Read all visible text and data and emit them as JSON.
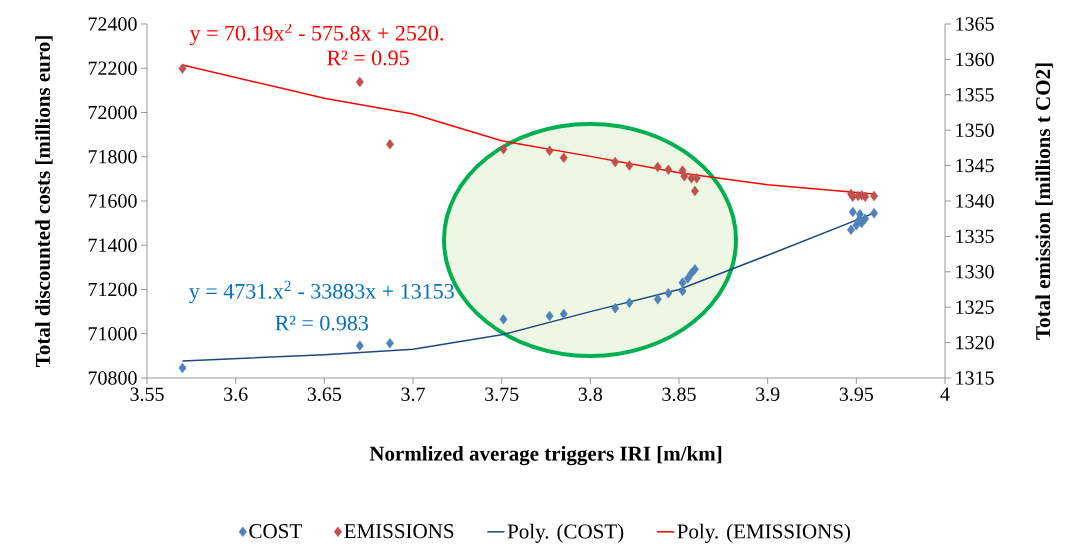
{
  "chart_data": {
    "type": "scatter",
    "xlabel": "Normlized average triggers IRI [m/km]",
    "ylabel": "Total discounted costs [millions euro]",
    "y2label": "Total emission [millions t CO2]",
    "xlim": [
      3.55,
      4
    ],
    "xticks": [
      3.55,
      3.6,
      3.65,
      3.7,
      3.75,
      3.8,
      3.85,
      3.9,
      3.95,
      4
    ],
    "ylim": [
      70800,
      72400
    ],
    "yticks": [
      70800,
      71000,
      71200,
      71400,
      71600,
      71800,
      72000,
      72200,
      72400
    ],
    "y2lim": [
      1315,
      1365
    ],
    "y2ticks": [
      1315,
      1320,
      1325,
      1330,
      1335,
      1340,
      1345,
      1350,
      1355,
      1360,
      1365
    ],
    "legend": "bottom",
    "annotations": [
      "y = 70.19x$^{2}$ - 575.8x + 2520.",
      "R² = 0.95",
      "y = 4731.x$^{2}$ - 33883x + 13153",
      "R² = 0.983"
    ],
    "series": [
      {
        "name": "COST",
        "marker": "diamond",
        "color": "#4f81bd",
        "x": [
          3.57,
          3.67,
          3.687,
          3.751,
          3.777,
          3.785,
          3.814,
          3.822,
          3.838,
          3.844,
          3.852,
          3.852,
          3.855,
          3.857,
          3.859,
          3.947,
          3.948,
          3.95,
          3.951,
          3.952,
          3.953,
          3.955,
          3.96
        ],
        "values": [
          70845,
          70946,
          70957,
          71065,
          71080,
          71089,
          71115,
          71140,
          71156,
          71183,
          71193,
          71231,
          71250,
          71273,
          71291,
          71470,
          71550,
          71490,
          71510,
          71540,
          71500,
          71520,
          71545
        ]
      },
      {
        "name": "EMISSIONS",
        "marker": "diamond",
        "axis": "y2",
        "color": "#c0504d",
        "x": [
          3.57,
          3.67,
          3.687,
          3.751,
          3.777,
          3.785,
          3.814,
          3.822,
          3.838,
          3.844,
          3.852,
          3.853,
          3.857,
          3.86,
          3.859,
          3.947,
          3.948,
          3.95,
          3.951,
          3.953,
          3.955,
          3.96
        ],
        "values": [
          1358.7,
          1356.8,
          1348.0,
          1347.3,
          1347.1,
          1346.1,
          1345.5,
          1345.0,
          1344.8,
          1344.4,
          1344.3,
          1343.5,
          1343.2,
          1343.2,
          1341.4,
          1341.0,
          1340.6,
          null,
          1340.7,
          1340.8,
          1340.6,
          1340.7
        ]
      },
      {
        "name": "Poly. (COST)",
        "type": "line",
        "marker": "none",
        "line_style": "solid",
        "color": "#1f497d",
        "x": [
          3.57,
          3.65,
          3.7,
          3.75,
          3.8,
          3.85,
          3.9,
          3.96
        ],
        "values": [
          70877,
          70905,
          70930,
          70995,
          71100,
          71200,
          71355,
          71545
        ]
      },
      {
        "name": "Poly. (EMISSIONS)",
        "type": "line",
        "marker": "none",
        "line_style": "solid",
        "axis": "y2",
        "color": "#ff0000",
        "x": [
          3.57,
          3.65,
          3.7,
          3.75,
          3.8,
          3.85,
          3.9,
          3.96
        ],
        "values": [
          1359.2,
          1354.5,
          1352.3,
          1348.5,
          1346.3,
          1344.0,
          1342.3,
          1341.0
        ]
      }
    ]
  }
}
